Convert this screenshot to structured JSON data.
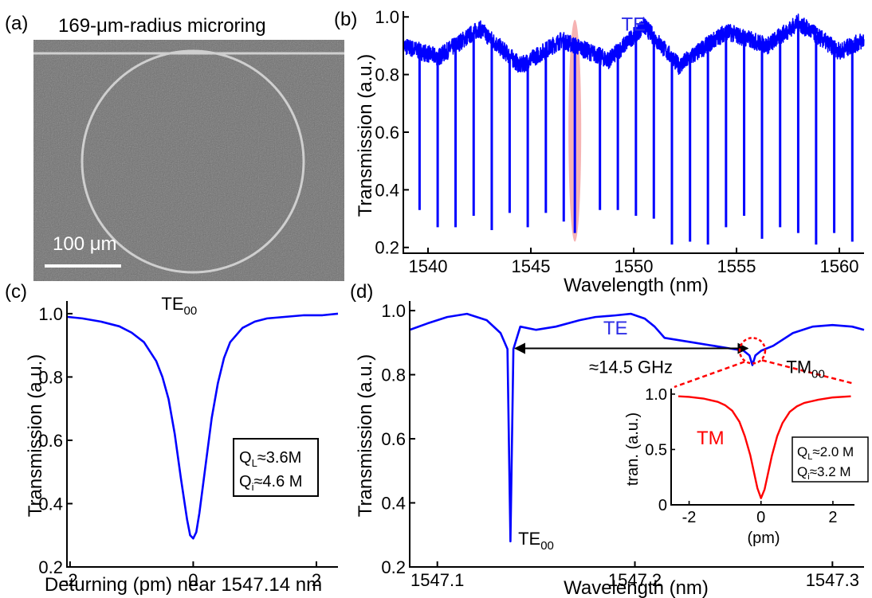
{
  "panels": {
    "a": {
      "label": "(a)",
      "title": "169-μm-radius microring",
      "scalebar": "100 μm",
      "colors": {
        "background": "#6e6e6e",
        "ring": "#cfcfcf"
      }
    }
  },
  "chart_data": [
    {
      "id": "b",
      "panel_label": "(b)",
      "type": "line",
      "title": "",
      "xlabel": "Wavelength (nm)",
      "ylabel": "Transmission (a.u.)",
      "xlim": [
        1538.8,
        1561.2
      ],
      "ylim": [
        0.18,
        1.02
      ],
      "xticks": [
        1540,
        1545,
        1550,
        1555,
        1560
      ],
      "yticks": [
        0.2,
        0.4,
        0.6,
        0.8,
        1.0
      ],
      "xtick_labels": [
        "1540",
        "1545",
        "1550",
        "1555",
        "1560"
      ],
      "ytick_labels": [
        "0.2",
        "0.4",
        "0.6",
        "0.8",
        "1.0"
      ],
      "grid": false,
      "series": [
        {
          "name": "TE",
          "color": "#0000ff",
          "baseline_wavelength": [
            1538.8,
            1540.5,
            1542.5,
            1544.5,
            1546.5,
            1548.8,
            1550.5,
            1552.2,
            1554.5,
            1556.5,
            1558.0,
            1560.0,
            1561.2
          ],
          "baseline_transmission": [
            0.9,
            0.86,
            0.96,
            0.83,
            0.92,
            0.85,
            0.97,
            0.83,
            0.95,
            0.9,
            0.98,
            0.88,
            0.92
          ],
          "resonance_wavelength": [
            1539.59,
            1540.47,
            1541.34,
            1542.22,
            1543.1,
            1543.97,
            1544.85,
            1545.73,
            1546.6,
            1547.14,
            1548.36,
            1549.23,
            1550.11,
            1550.98,
            1551.86,
            1552.74,
            1553.61,
            1554.49,
            1555.37,
            1556.24,
            1557.12,
            1558.0,
            1558.87,
            1559.75,
            1560.63
          ],
          "resonance_transmission": [
            0.33,
            0.27,
            0.27,
            0.31,
            0.26,
            0.32,
            0.27,
            0.32,
            0.29,
            0.25,
            0.33,
            0.33,
            0.31,
            0.3,
            0.21,
            0.22,
            0.21,
            0.27,
            0.31,
            0.23,
            0.27,
            0.25,
            0.21,
            0.25,
            0.22
          ]
        }
      ],
      "annotations": [
        {
          "text": "TE",
          "x": 1549.4,
          "y": 0.985,
          "color": "#2e2ee6"
        }
      ],
      "highlight": {
        "x": 1547.14,
        "ymin": 0.22,
        "ymax": 0.99,
        "color": "#f08080"
      }
    },
    {
      "id": "c",
      "panel_label": "(c)",
      "type": "line",
      "title": "",
      "xlabel": "Deturning (pm) near 1547.14 nm",
      "ylabel": "Transmission (a.u.)",
      "xlim": [
        -2.05,
        2.35
      ],
      "ylim": [
        0.2,
        1.04
      ],
      "xticks": [
        -2,
        0,
        2
      ],
      "yticks": [
        0.2,
        0.4,
        0.6,
        0.8,
        1.0
      ],
      "xtick_labels": [
        "-2",
        "0",
        "2"
      ],
      "ytick_labels": [
        "0.2",
        "0.4",
        "0.6",
        "0.8",
        "1.0"
      ],
      "grid": false,
      "series": [
        {
          "name": "TE00",
          "color": "#0000ff",
          "x": [
            -2.05,
            -1.8,
            -1.5,
            -1.2,
            -1.0,
            -0.8,
            -0.6,
            -0.5,
            -0.4,
            -0.3,
            -0.2,
            -0.1,
            -0.05,
            0.0,
            0.05,
            0.1,
            0.2,
            0.3,
            0.4,
            0.5,
            0.6,
            0.8,
            1.0,
            1.2,
            1.5,
            1.8,
            2.1,
            2.35
          ],
          "y": [
            0.99,
            0.985,
            0.975,
            0.96,
            0.94,
            0.91,
            0.85,
            0.8,
            0.73,
            0.62,
            0.48,
            0.35,
            0.3,
            0.29,
            0.31,
            0.37,
            0.52,
            0.67,
            0.78,
            0.86,
            0.91,
            0.955,
            0.975,
            0.985,
            0.99,
            0.995,
            0.995,
            1.0
          ]
        }
      ],
      "annotations": [
        {
          "text": "TE",
          "sub": "00",
          "x": 0.0,
          "y": 1.0
        }
      ],
      "legend_box": {
        "lines": [
          {
            "q": "Q",
            "sub": "L",
            "value": "≈3.6M"
          },
          {
            "q": "Q",
            "sub": "i",
            "value": "≈4.6 M"
          }
        ]
      }
    },
    {
      "id": "d",
      "panel_label": "(d)",
      "type": "line",
      "title": "",
      "xlabel": "Wavelength (nm)",
      "ylabel": "Transmission (a.u.)",
      "xlim": [
        1547.086,
        1547.316
      ],
      "ylim": [
        0.2,
        1.03
      ],
      "xticks": [
        1547.1,
        1547.2,
        1547.3
      ],
      "yticks": [
        0.2,
        0.4,
        0.6,
        0.8,
        1.0
      ],
      "xtick_labels": [
        "1547.1",
        "1547.2",
        "1547.3"
      ],
      "ytick_labels": [
        "0.2",
        "0.4",
        "0.6",
        "0.8",
        "1.0"
      ],
      "grid": false,
      "series": [
        {
          "name": "TE",
          "color": "#0000ff",
          "x": [
            1547.086,
            1547.095,
            1547.105,
            1547.115,
            1547.125,
            1547.132,
            1547.1355,
            1547.137,
            1547.1385,
            1547.142,
            1547.15,
            1547.16,
            1547.172,
            1547.18,
            1547.19,
            1547.198,
            1547.205,
            1547.21,
            1547.215,
            1547.22,
            1547.23,
            1547.24,
            1547.25,
            1547.255,
            1547.258,
            1547.2595,
            1547.261,
            1547.264,
            1547.27,
            1547.28,
            1547.29,
            1547.3,
            1547.31,
            1547.316
          ],
          "y": [
            0.94,
            0.96,
            0.98,
            0.99,
            0.97,
            0.93,
            0.88,
            0.28,
            0.88,
            0.95,
            0.94,
            0.95,
            0.97,
            0.98,
            0.985,
            0.99,
            0.975,
            0.95,
            0.915,
            0.91,
            0.9,
            0.89,
            0.88,
            0.875,
            0.86,
            0.83,
            0.86,
            0.875,
            0.89,
            0.93,
            0.95,
            0.955,
            0.95,
            0.94
          ]
        }
      ],
      "annotations": [
        {
          "text": "TE",
          "x": 1547.184,
          "y": 0.97,
          "color": "#2e2ee6"
        },
        {
          "text": "TE",
          "sub": "00",
          "x": 1547.1385,
          "y": 0.3
        },
        {
          "text": "TM",
          "sub": "00",
          "x": 1547.275,
          "y": 0.84
        },
        {
          "text": "≈14.5 GHz",
          "x": 1547.198,
          "y": 0.805
        }
      ],
      "arrow": {
        "x1": 1547.137,
        "x2": 1547.2595,
        "y": 0.882
      },
      "highlight_circle": {
        "x": 1547.2595,
        "y": 0.875
      },
      "inset": {
        "type": "line",
        "xlabel": "(pm)",
        "ylabel": "tran. (a.u.)",
        "xlim": [
          -2.5,
          2.6
        ],
        "ylim": [
          0,
          1.05
        ],
        "xticks": [
          -2,
          0,
          2
        ],
        "yticks": [
          0,
          0.5,
          1.0
        ],
        "xtick_labels": [
          "-2",
          "0",
          "2"
        ],
        "ytick_labels": [
          "0",
          "0.5",
          "1.0"
        ],
        "series": [
          {
            "name": "TM",
            "color": "#ff0000",
            "x": [
              -2.3,
              -2.0,
              -1.6,
              -1.2,
              -1.0,
              -0.8,
              -0.6,
              -0.45,
              -0.3,
              -0.2,
              -0.1,
              0.0,
              0.1,
              0.2,
              0.3,
              0.45,
              0.6,
              0.8,
              1.0,
              1.2,
              1.6,
              2.0,
              2.5
            ],
            "y": [
              0.98,
              0.975,
              0.96,
              0.93,
              0.9,
              0.85,
              0.75,
              0.62,
              0.45,
              0.3,
              0.15,
              0.06,
              0.14,
              0.29,
              0.44,
              0.62,
              0.74,
              0.84,
              0.89,
              0.92,
              0.95,
              0.97,
              0.98
            ]
          }
        ],
        "legend_box": {
          "lines": [
            {
              "q": "Q",
              "sub": "L",
              "value": "≈2.0 M"
            },
            {
              "q": "Q",
              "sub": "i",
              "value": "≈3.2 M"
            }
          ]
        }
      }
    }
  ]
}
